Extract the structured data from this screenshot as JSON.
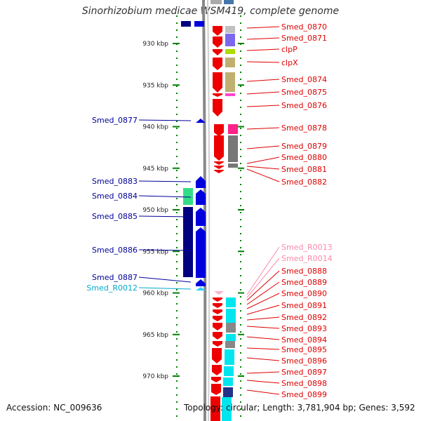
{
  "title": "Sinorhizobium medicae WSM419, complete genome",
  "footer": {
    "accession": "Accession: NC_009636",
    "topology": "Topology: circular; Length: 3,781,904 bp; Genes: 3,592"
  },
  "colors": {
    "right_label": "#e00000",
    "left_label": "#000099",
    "rrna_label": "#00aacc",
    "ncrna_label": "#ff88aa",
    "tick": "#008000",
    "backbone": "#888888"
  },
  "ticks": [
    {
      "text": "930 kbp",
      "pos": 930
    },
    {
      "text": "935 kbp",
      "pos": 935
    },
    {
      "text": "940 kbp",
      "pos": 940
    },
    {
      "text": "945 kbp",
      "pos": 945
    },
    {
      "text": "950 kbp",
      "pos": 950
    },
    {
      "text": "955 kbp",
      "pos": 955
    },
    {
      "text": "960 kbp",
      "pos": 960
    },
    {
      "text": "965 kbp",
      "pos": 965
    },
    {
      "text": "970 kbp",
      "pos": 970
    }
  ],
  "right_labels": [
    {
      "text": "Smed_0870",
      "type": "gene"
    },
    {
      "text": "Smed_0871",
      "type": "gene"
    },
    {
      "text": "clpP",
      "type": "gene"
    },
    {
      "text": "clpX",
      "type": "gene"
    },
    {
      "text": "Smed_0874",
      "type": "gene"
    },
    {
      "text": "Smed_0875",
      "type": "gene"
    },
    {
      "text": "Smed_0876",
      "type": "gene"
    },
    {
      "text": "Smed_0878",
      "type": "gene"
    },
    {
      "text": "Smed_0879",
      "type": "gene"
    },
    {
      "text": "Smed_0880",
      "type": "gene"
    },
    {
      "text": "Smed_0881",
      "type": "gene"
    },
    {
      "text": "Smed_0882",
      "type": "gene"
    },
    {
      "text": "Smed_R0013",
      "type": "ncrna"
    },
    {
      "text": "Smed_R0014",
      "type": "ncrna"
    },
    {
      "text": "Smed_0888",
      "type": "gene"
    },
    {
      "text": "Smed_0889",
      "type": "gene"
    },
    {
      "text": "Smed_0890",
      "type": "gene"
    },
    {
      "text": "Smed_0891",
      "type": "gene"
    },
    {
      "text": "Smed_0892",
      "type": "gene"
    },
    {
      "text": "Smed_0893",
      "type": "gene"
    },
    {
      "text": "Smed_0894",
      "type": "gene"
    },
    {
      "text": "Smed_0895",
      "type": "gene"
    },
    {
      "text": "Smed_0896",
      "type": "gene"
    },
    {
      "text": "Smed_0897",
      "type": "gene"
    },
    {
      "text": "Smed_0898",
      "type": "gene"
    },
    {
      "text": "Smed_0899",
      "type": "gene"
    }
  ],
  "left_labels": [
    {
      "text": "Smed_0877",
      "type": "gene"
    },
    {
      "text": "Smed_0883",
      "type": "gene"
    },
    {
      "text": "Smed_0884",
      "type": "gene"
    },
    {
      "text": "Smed_0885",
      "type": "gene"
    },
    {
      "text": "Smed_0886",
      "type": "gene"
    },
    {
      "text": "Smed_0887",
      "type": "gene"
    },
    {
      "text": "Smed_R0012",
      "type": "rrna"
    }
  ]
}
